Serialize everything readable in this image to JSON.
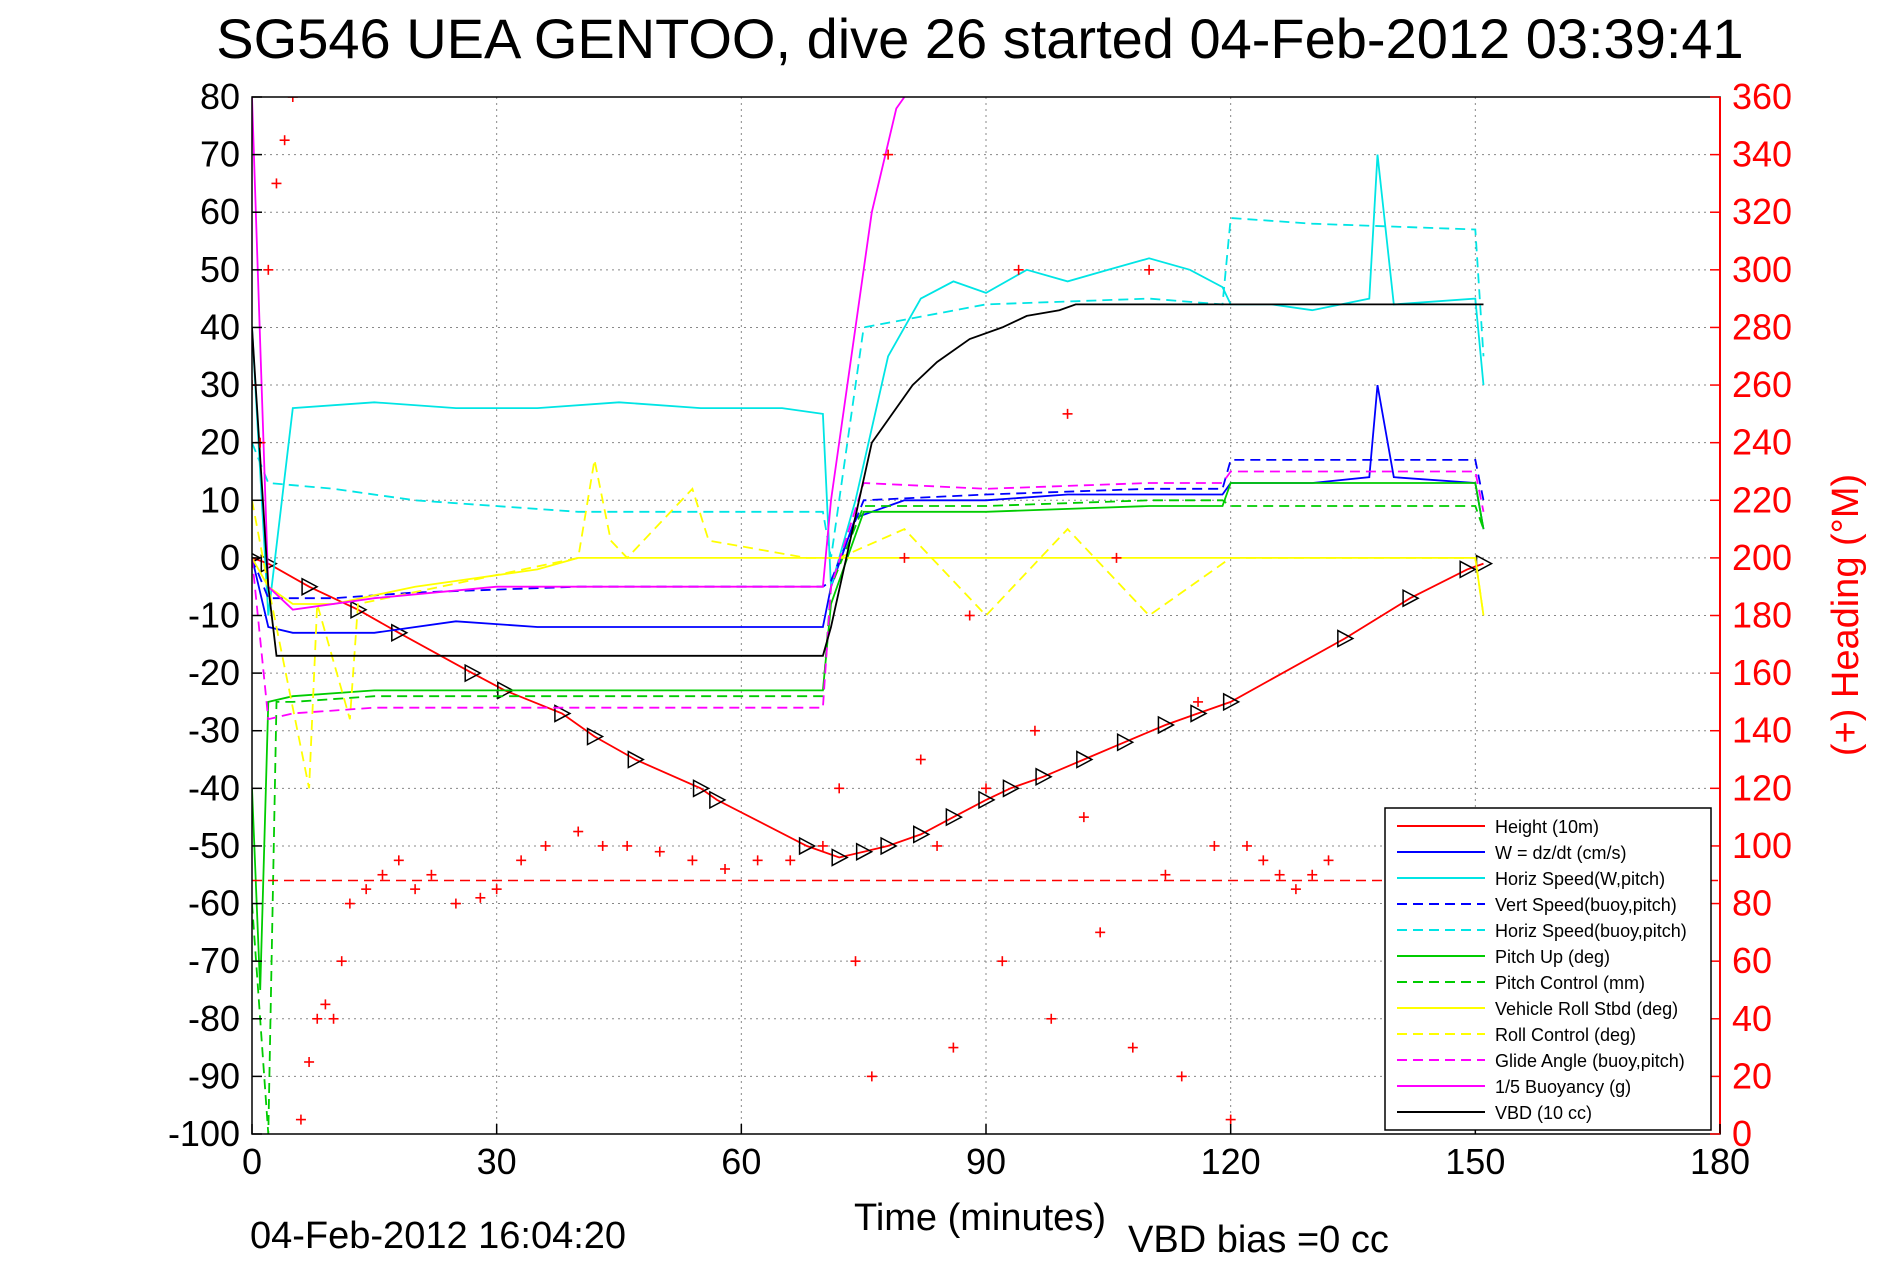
{
  "title": "SG546 UEA GENTOO, dive 26 started 04-Feb-2012 03:39:41",
  "footer_left": "04-Feb-2012 16:04:20",
  "footer_right": "VBD bias =0 cc",
  "chart_data": {
    "type": "line",
    "xlabel": "Time (minutes)",
    "ylabel": "",
    "y2label": "(+) Heading (°M)",
    "xlim": [
      0,
      180
    ],
    "ylim": [
      -100,
      80
    ],
    "y2lim": [
      0,
      360
    ],
    "xticks": [
      0,
      30,
      60,
      90,
      120,
      150,
      180
    ],
    "yticks": [
      -100,
      -90,
      -80,
      -70,
      -60,
      -50,
      -40,
      -30,
      -20,
      -10,
      0,
      10,
      20,
      30,
      40,
      50,
      60,
      70,
      80
    ],
    "y2ticks": [
      0,
      20,
      40,
      60,
      80,
      100,
      120,
      140,
      160,
      180,
      200,
      220,
      240,
      260,
      280,
      300,
      320,
      340,
      360
    ],
    "grid": true,
    "legend_position": "bottom-right",
    "colors": {
      "red": "#ff0000",
      "blue": "#0000ff",
      "cyan": "#00e5e5",
      "green": "#00cc00",
      "yellow": "#ffff00",
      "magenta": "#ff00ff",
      "black": "#000000"
    },
    "series": [
      {
        "name": "Height (10m)",
        "color": "#ff0000",
        "style": "solid",
        "marker": "triangle",
        "x": [
          0,
          2,
          7,
          13,
          18,
          27,
          31,
          38,
          42,
          47,
          55,
          57,
          68,
          72,
          75,
          78,
          82,
          86,
          90,
          93,
          97,
          102,
          107,
          112,
          116,
          120,
          134,
          142,
          149,
          151
        ],
        "y": [
          0,
          -1,
          -5,
          -9,
          -13,
          -20,
          -23,
          -27,
          -31,
          -35,
          -40,
          -42,
          -50,
          -52,
          -51,
          -50,
          -48,
          -45,
          -42,
          -40,
          -38,
          -35,
          -32,
          -29,
          -27,
          -25,
          -14,
          -7,
          -2,
          -1
        ]
      },
      {
        "name": "W = dz/dt (cm/s)",
        "color": "#0000ff",
        "style": "solid",
        "x": [
          0,
          2,
          5,
          15,
          25,
          35,
          45,
          55,
          65,
          70,
          71,
          74,
          80,
          90,
          100,
          110,
          119,
          120,
          130,
          137,
          138,
          140,
          150,
          151
        ],
        "y": [
          0,
          -12,
          -13,
          -13,
          -11,
          -12,
          -12,
          -12,
          -12,
          -12,
          -5,
          7,
          10,
          10,
          11,
          11,
          11,
          13,
          13,
          14,
          30,
          14,
          13,
          5
        ]
      },
      {
        "name": "Horiz Speed(W,pitch)",
        "color": "#00e5e5",
        "style": "solid",
        "x": [
          0,
          2,
          5,
          15,
          25,
          35,
          45,
          55,
          65,
          70,
          71,
          74,
          78,
          82,
          86,
          90,
          95,
          100,
          105,
          110,
          115,
          119,
          120,
          125,
          130,
          137,
          138,
          140,
          150,
          151
        ],
        "y": [
          40,
          -10,
          26,
          27,
          26,
          26,
          27,
          26,
          26,
          25,
          -5,
          10,
          35,
          45,
          48,
          46,
          50,
          48,
          50,
          52,
          50,
          47,
          44,
          44,
          43,
          45,
          70,
          44,
          45,
          30
        ]
      },
      {
        "name": "Vert Speed(buoy,pitch)",
        "color": "#0000ff",
        "style": "dashed",
        "x": [
          0,
          2,
          10,
          20,
          40,
          60,
          70,
          71,
          75,
          90,
          110,
          119,
          120,
          150,
          151
        ],
        "y": [
          0,
          -7,
          -7,
          -6,
          -5,
          -5,
          -5,
          -4,
          10,
          11,
          12,
          12,
          17,
          17,
          10
        ]
      },
      {
        "name": "Horiz Speed(buoy,pitch)",
        "color": "#00e5e5",
        "style": "dashed",
        "x": [
          0,
          2,
          10,
          20,
          40,
          60,
          70,
          71,
          75,
          90,
          110,
          119,
          120,
          130,
          150,
          151
        ],
        "y": [
          20,
          13,
          12,
          10,
          8,
          8,
          8,
          0,
          40,
          44,
          45,
          44,
          59,
          58,
          57,
          35
        ]
      },
      {
        "name": "Pitch Up (deg)",
        "color": "#00cc00",
        "style": "solid",
        "x": [
          0,
          1,
          2,
          5,
          15,
          40,
          70,
          71,
          75,
          90,
          110,
          119,
          120,
          150,
          151
        ],
        "y": [
          -40,
          -75,
          -25,
          -24,
          -23,
          -23,
          -23,
          -8,
          8,
          8,
          9,
          9,
          13,
          13,
          5
        ]
      },
      {
        "name": "Pitch Control (mm)",
        "color": "#00cc00",
        "style": "dashed",
        "x": [
          0,
          2,
          3,
          5,
          15,
          40,
          70,
          71,
          75,
          90,
          110,
          119,
          120,
          150,
          151
        ],
        "y": [
          -60,
          -100,
          -25,
          -25,
          -24,
          -24,
          -24,
          -5,
          9,
          9,
          10,
          10,
          9,
          9,
          5
        ]
      },
      {
        "name": "Vehicle Roll Stbd (deg)",
        "color": "#ffff00",
        "style": "solid",
        "x": [
          0,
          2,
          5,
          10,
          20,
          35,
          40,
          50,
          60,
          70,
          75,
          80,
          85,
          90,
          100,
          110,
          120,
          130,
          140,
          150,
          151
        ],
        "y": [
          0,
          -5,
          -8,
          -8,
          -5,
          -2,
          0,
          0,
          0,
          0,
          0,
          0,
          0,
          0,
          0,
          0,
          0,
          0,
          0,
          0,
          -10
        ]
      },
      {
        "name": "Roll Control (deg)",
        "color": "#ffff00",
        "style": "dashed",
        "x": [
          0,
          2,
          7,
          8,
          12,
          13,
          40,
          42,
          44,
          46,
          54,
          56,
          68,
          72,
          80,
          90,
          100,
          110,
          120,
          150,
          151
        ],
        "y": [
          10,
          -5,
          -40,
          -8,
          -28,
          -8,
          0,
          17,
          3,
          0,
          12,
          3,
          0,
          0,
          5,
          -10,
          5,
          -10,
          0,
          0,
          -10
        ]
      },
      {
        "name": "Glide Angle (buoy,pitch)",
        "color": "#ff00ff",
        "style": "dashed",
        "x": [
          0,
          2,
          5,
          15,
          40,
          70,
          71,
          75,
          90,
          110,
          119,
          120,
          150,
          151
        ],
        "y": [
          0,
          -28,
          -27,
          -26,
          -26,
          -26,
          -5,
          13,
          12,
          13,
          13,
          15,
          15,
          8
        ]
      },
      {
        "name": "1/5 Buoyancy (g)",
        "color": "#ff00ff",
        "style": "solid",
        "x": [
          0,
          2,
          5,
          15,
          30,
          45,
          60,
          70,
          71,
          76,
          79,
          80
        ],
        "y": [
          80,
          -5,
          -9,
          -7,
          -5,
          -5,
          -5,
          -5,
          10,
          60,
          78,
          80
        ]
      },
      {
        "name": "VBD (10 cc)",
        "color": "#000000",
        "style": "solid",
        "x": [
          0,
          2,
          3,
          70,
          71,
          76,
          81,
          84,
          88,
          92,
          95,
          99,
          101,
          102,
          151
        ],
        "y": [
          40,
          -5,
          -17,
          -17,
          -12,
          20,
          30,
          34,
          38,
          40,
          42,
          43,
          44,
          44,
          44
        ]
      }
    ],
    "heading_series": {
      "name": "(+) Heading",
      "color": "#ff0000",
      "marker": "plus",
      "axis": "right",
      "x": [
        0,
        1,
        2,
        3,
        4,
        5,
        6,
        7,
        8,
        9,
        10,
        11,
        12,
        14,
        16,
        18,
        20,
        22,
        25,
        28,
        30,
        33,
        36,
        40,
        43,
        46,
        50,
        54,
        58,
        62,
        66,
        70,
        72,
        74,
        76,
        78,
        80,
        82,
        84,
        86,
        88,
        90,
        92,
        94,
        96,
        98,
        100,
        102,
        104,
        106,
        108,
        110,
        112,
        114,
        116,
        118,
        120,
        122,
        124,
        126,
        128,
        130,
        132
      ],
      "y": [
        260,
        240,
        300,
        330,
        345,
        360,
        5,
        25,
        40,
        45,
        40,
        60,
        80,
        85,
        90,
        95,
        85,
        90,
        80,
        82,
        85,
        95,
        100,
        105,
        100,
        100,
        98,
        95,
        92,
        95,
        95,
        100,
        120,
        60,
        20,
        340,
        200,
        130,
        100,
        30,
        180,
        120,
        60,
        300,
        140,
        40,
        250,
        110,
        70,
        200,
        30,
        300,
        90,
        20,
        150,
        100,
        5,
        100,
        95,
        90,
        85,
        90,
        95
      ]
    }
  }
}
